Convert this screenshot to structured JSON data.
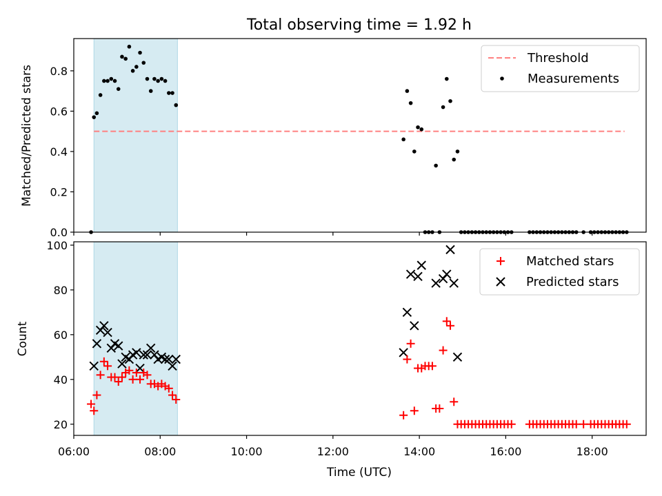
{
  "figure": {
    "title": "Total observing time = 1.92 h",
    "xlabel": "Time (UTC)"
  },
  "chart_data": [
    {
      "type": "scatter",
      "panel": "top",
      "ylabel": "Matched/Predicted stars",
      "x_axis": "time of day (UTC, HH:MM)",
      "xlim": [
        "06:00",
        "19:15"
      ],
      "ylim": [
        0,
        0.96
      ],
      "yticks": [
        0.0,
        0.2,
        0.4,
        0.6,
        0.8
      ],
      "ytick_labels": [
        "0.0",
        "0.2",
        "0.4",
        "0.6",
        "0.8"
      ],
      "grid": false,
      "legend": {
        "position": "upper right",
        "entries": [
          "Threshold",
          "Measurements"
        ]
      },
      "highlight_span": {
        "start": "06:28",
        "end": "08:24",
        "color": "#add8e6"
      },
      "threshold": {
        "name": "Threshold",
        "value": 0.5,
        "x_start": "06:28",
        "x_end": "18:45",
        "color": "#ff8080",
        "style": "dashed"
      },
      "series": [
        {
          "name": "Measurements",
          "marker": "dot",
          "color": "#000000",
          "points": [
            [
              "06:24",
              0.0
            ],
            [
              "06:28",
              0.57
            ],
            [
              "06:32",
              0.59
            ],
            [
              "06:37",
              0.68
            ],
            [
              "06:42",
              0.75
            ],
            [
              "06:47",
              0.75
            ],
            [
              "06:52",
              0.76
            ],
            [
              "06:57",
              0.75
            ],
            [
              "07:02",
              0.71
            ],
            [
              "07:07",
              0.87
            ],
            [
              "07:12",
              0.86
            ],
            [
              "07:17",
              0.92
            ],
            [
              "07:22",
              0.8
            ],
            [
              "07:27",
              0.82
            ],
            [
              "07:32",
              0.89
            ],
            [
              "07:37",
              0.84
            ],
            [
              "07:42",
              0.76
            ],
            [
              "07:47",
              0.7
            ],
            [
              "07:52",
              0.76
            ],
            [
              "07:57",
              0.75
            ],
            [
              "08:02",
              0.76
            ],
            [
              "08:07",
              0.75
            ],
            [
              "08:12",
              0.69
            ],
            [
              "08:17",
              0.69
            ],
            [
              "08:22",
              0.63
            ],
            [
              "13:38",
              0.46
            ],
            [
              "13:43",
              0.7
            ],
            [
              "13:48",
              0.64
            ],
            [
              "13:53",
              0.4
            ],
            [
              "13:58",
              0.52
            ],
            [
              "14:03",
              0.51
            ],
            [
              "14:08",
              0.0
            ],
            [
              "14:13",
              0.0
            ],
            [
              "14:18",
              0.0
            ],
            [
              "14:23",
              0.33
            ],
            [
              "14:28",
              0.0
            ],
            [
              "14:33",
              0.62
            ],
            [
              "14:38",
              0.76
            ],
            [
              "14:43",
              0.65
            ],
            [
              "14:48",
              0.36
            ],
            [
              "14:53",
              0.4
            ],
            [
              "14:58",
              0.0
            ],
            [
              "15:03",
              0.0
            ],
            [
              "15:08",
              0.0
            ],
            [
              "15:13",
              0.0
            ],
            [
              "15:18",
              0.0
            ],
            [
              "15:23",
              0.0
            ],
            [
              "15:28",
              0.0
            ],
            [
              "15:33",
              0.0
            ],
            [
              "15:38",
              0.0
            ],
            [
              "15:43",
              0.0
            ],
            [
              "15:48",
              0.0
            ],
            [
              "15:53",
              0.0
            ],
            [
              "15:58",
              0.0
            ],
            [
              "16:03",
              0.0
            ],
            [
              "16:08",
              0.0
            ],
            [
              "16:33",
              0.0
            ],
            [
              "16:38",
              0.0
            ],
            [
              "16:43",
              0.0
            ],
            [
              "16:48",
              0.0
            ],
            [
              "16:53",
              0.0
            ],
            [
              "16:58",
              0.0
            ],
            [
              "17:03",
              0.0
            ],
            [
              "17:08",
              0.0
            ],
            [
              "17:13",
              0.0
            ],
            [
              "17:18",
              0.0
            ],
            [
              "17:23",
              0.0
            ],
            [
              "17:28",
              0.0
            ],
            [
              "17:33",
              0.0
            ],
            [
              "17:38",
              0.0
            ],
            [
              "17:48",
              0.0
            ],
            [
              "17:58",
              0.0
            ],
            [
              "18:03",
              0.0
            ],
            [
              "18:08",
              0.0
            ],
            [
              "18:13",
              0.0
            ],
            [
              "18:18",
              0.0
            ],
            [
              "18:23",
              0.0
            ],
            [
              "18:28",
              0.0
            ],
            [
              "18:33",
              0.0
            ],
            [
              "18:38",
              0.0
            ],
            [
              "18:43",
              0.0
            ],
            [
              "18:48",
              0.0
            ]
          ]
        }
      ]
    },
    {
      "type": "scatter",
      "panel": "bottom",
      "ylabel": "Count",
      "xlabel": "Time (UTC)",
      "x_axis": "time of day (UTC, HH:MM)",
      "xlim": [
        "06:00",
        "19:15"
      ],
      "ylim": [
        15,
        101.5
      ],
      "yticks": [
        20,
        40,
        60,
        80,
        100
      ],
      "ytick_labels": [
        "20",
        "40",
        "60",
        "80",
        "100"
      ],
      "xticks": [
        "06:00",
        "08:00",
        "10:00",
        "12:00",
        "14:00",
        "16:00",
        "18:00"
      ],
      "xtick_labels": [
        "06:00",
        "08:00",
        "10:00",
        "12:00",
        "14:00",
        "16:00",
        "18:00"
      ],
      "grid": false,
      "legend": {
        "position": "upper right",
        "entries": [
          "Matched stars",
          "Predicted stars"
        ]
      },
      "highlight_span": {
        "start": "06:28",
        "end": "08:24",
        "color": "#add8e6"
      },
      "series": [
        {
          "name": "Matched stars",
          "marker": "plus",
          "color": "#ff0000",
          "points": [
            [
              "06:24",
              29
            ],
            [
              "06:28",
              26
            ],
            [
              "06:32",
              33
            ],
            [
              "06:37",
              42
            ],
            [
              "06:42",
              48
            ],
            [
              "06:47",
              46
            ],
            [
              "06:52",
              41
            ],
            [
              "06:57",
              41
            ],
            [
              "07:02",
              39
            ],
            [
              "07:07",
              41
            ],
            [
              "07:12",
              43
            ],
            [
              "07:17",
              44
            ],
            [
              "07:22",
              40
            ],
            [
              "07:27",
              43
            ],
            [
              "07:32",
              40
            ],
            [
              "07:37",
              43
            ],
            [
              "07:42",
              42
            ],
            [
              "07:47",
              38
            ],
            [
              "07:52",
              38
            ],
            [
              "07:57",
              37
            ],
            [
              "08:02",
              38
            ],
            [
              "08:07",
              37
            ],
            [
              "08:12",
              36
            ],
            [
              "08:17",
              33
            ],
            [
              "08:22",
              31
            ],
            [
              "13:38",
              24
            ],
            [
              "13:43",
              49
            ],
            [
              "13:48",
              56
            ],
            [
              "13:53",
              26
            ],
            [
              "13:58",
              45
            ],
            [
              "14:03",
              45
            ],
            [
              "14:08",
              46
            ],
            [
              "14:13",
              46
            ],
            [
              "14:18",
              46
            ],
            [
              "14:23",
              27
            ],
            [
              "14:28",
              27
            ],
            [
              "14:33",
              53
            ],
            [
              "14:38",
              66
            ],
            [
              "14:43",
              64
            ],
            [
              "14:48",
              30
            ],
            [
              "14:53",
              20
            ],
            [
              "14:58",
              20
            ],
            [
              "15:03",
              20
            ],
            [
              "15:08",
              20
            ],
            [
              "15:13",
              20
            ],
            [
              "15:18",
              20
            ],
            [
              "15:23",
              20
            ],
            [
              "15:28",
              20
            ],
            [
              "15:33",
              20
            ],
            [
              "15:38",
              20
            ],
            [
              "15:43",
              20
            ],
            [
              "15:48",
              20
            ],
            [
              "15:53",
              20
            ],
            [
              "15:58",
              20
            ],
            [
              "16:03",
              20
            ],
            [
              "16:08",
              20
            ],
            [
              "16:33",
              20
            ],
            [
              "16:38",
              20
            ],
            [
              "16:43",
              20
            ],
            [
              "16:48",
              20
            ],
            [
              "16:53",
              20
            ],
            [
              "16:58",
              20
            ],
            [
              "17:03",
              20
            ],
            [
              "17:08",
              20
            ],
            [
              "17:13",
              20
            ],
            [
              "17:18",
              20
            ],
            [
              "17:23",
              20
            ],
            [
              "17:28",
              20
            ],
            [
              "17:33",
              20
            ],
            [
              "17:38",
              20
            ],
            [
              "17:48",
              20
            ],
            [
              "17:58",
              20
            ],
            [
              "18:03",
              20
            ],
            [
              "18:08",
              20
            ],
            [
              "18:13",
              20
            ],
            [
              "18:18",
              20
            ],
            [
              "18:23",
              20
            ],
            [
              "18:28",
              20
            ],
            [
              "18:33",
              20
            ],
            [
              "18:38",
              20
            ],
            [
              "18:43",
              20
            ],
            [
              "18:48",
              20
            ]
          ]
        },
        {
          "name": "Predicted stars",
          "marker": "x",
          "color": "#000000",
          "points": [
            [
              "06:28",
              46
            ],
            [
              "06:32",
              56
            ],
            [
              "06:37",
              62
            ],
            [
              "06:42",
              64
            ],
            [
              "06:47",
              61
            ],
            [
              "06:52",
              54
            ],
            [
              "06:57",
              56
            ],
            [
              "07:02",
              55
            ],
            [
              "07:07",
              47
            ],
            [
              "07:12",
              50
            ],
            [
              "07:17",
              49
            ],
            [
              "07:22",
              51
            ],
            [
              "07:27",
              52
            ],
            [
              "07:32",
              45
            ],
            [
              "07:37",
              51
            ],
            [
              "07:42",
              51
            ],
            [
              "07:47",
              54
            ],
            [
              "07:52",
              51
            ],
            [
              "07:57",
              49
            ],
            [
              "08:02",
              50
            ],
            [
              "08:07",
              49
            ],
            [
              "08:12",
              49
            ],
            [
              "08:17",
              46
            ],
            [
              "08:22",
              49
            ],
            [
              "13:38",
              52
            ],
            [
              "13:43",
              70
            ],
            [
              "13:48",
              87
            ],
            [
              "13:53",
              64
            ],
            [
              "13:58",
              86
            ],
            [
              "14:03",
              91
            ],
            [
              "14:23",
              83
            ],
            [
              "14:33",
              85
            ],
            [
              "14:38",
              87
            ],
            [
              "14:43",
              98
            ],
            [
              "14:48",
              83
            ],
            [
              "14:53",
              50
            ]
          ]
        }
      ]
    }
  ]
}
